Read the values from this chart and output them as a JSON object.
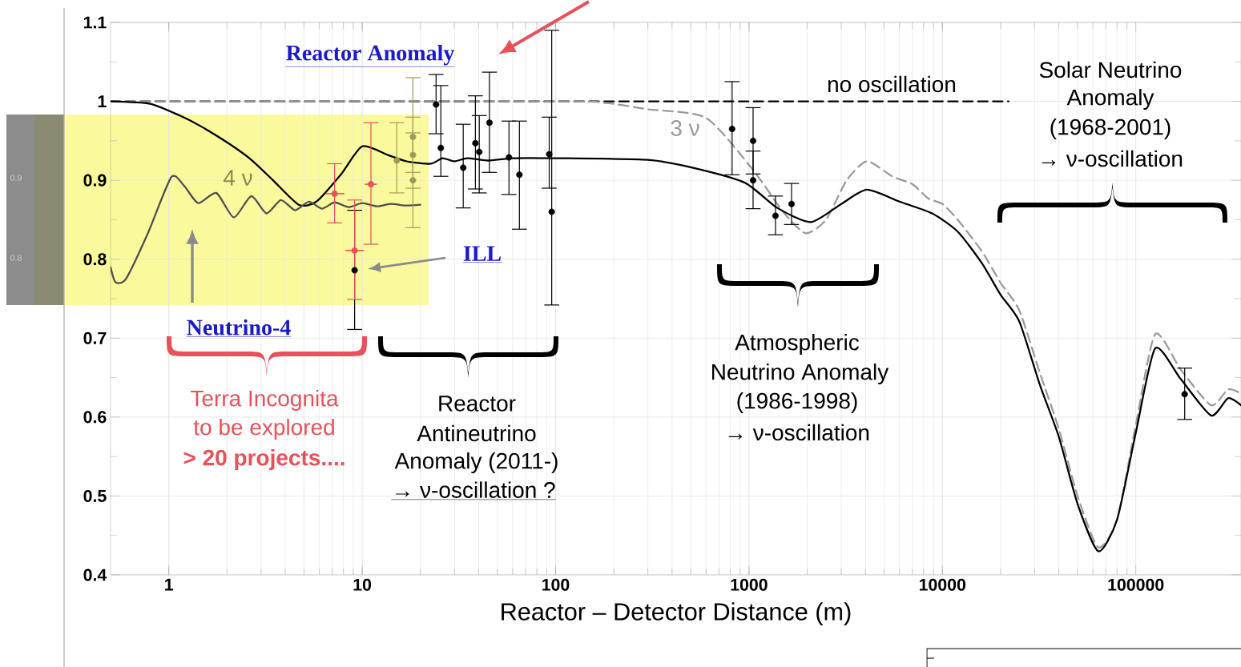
{
  "chart_data": {
    "type": "line",
    "xlabel": "Reactor – Detector Distance (m)",
    "log": "x",
    "grid": true,
    "xlim": [
      0.5,
      350000
    ],
    "ylim": [
      0.4,
      1.1
    ],
    "xticks": [
      1,
      10,
      100,
      1000,
      10000,
      100000
    ],
    "yticks": [
      0.4,
      0.5,
      0.6,
      0.7,
      0.8,
      0.9,
      1,
      1.1
    ],
    "series": [
      {
        "name": "no oscillation",
        "type": "line",
        "color": "#000000",
        "line_style": "dashed",
        "marker": "none",
        "x": [
          0.5,
          22000
        ],
        "values": [
          1,
          1
        ]
      },
      {
        "name": "3 ν",
        "type": "line",
        "color": "#9a9a9a",
        "line_style": "dashed",
        "marker": "none",
        "x": [
          0.5,
          100,
          182,
          300,
          600,
          1050,
          1500,
          1960,
          2500,
          3200,
          4070,
          5500,
          7000,
          8450,
          10000,
          12000,
          16000,
          20000,
          25000,
          32000,
          40000,
          50000,
          64000,
          80000,
          100000,
          126000,
          171000,
          245000,
          300000,
          350000
        ],
        "values": [
          1,
          1,
          0.998,
          0.99,
          0.979,
          0.913,
          0.86,
          0.833,
          0.85,
          0.9,
          0.924,
          0.905,
          0.895,
          0.877,
          0.87,
          0.85,
          0.81,
          0.77,
          0.735,
          0.655,
          0.585,
          0.5,
          0.435,
          0.47,
          0.59,
          0.705,
          0.66,
          0.615,
          0.635,
          0.63
        ]
      },
      {
        "name": "4 ν",
        "type": "line",
        "color": "#000000",
        "line_style": "solid",
        "marker": "none",
        "x": [
          0.5,
          0.8,
          1.14,
          1.5,
          2.09,
          2.7,
          3.46,
          4.7,
          5.8,
          7.8,
          10,
          13.6,
          17,
          22.7,
          26,
          30,
          35,
          45,
          60,
          100,
          300,
          510,
          950,
          1400,
          2090,
          3000,
          4070,
          6000,
          8850,
          12000,
          16000,
          20000,
          25000,
          32000,
          40000,
          50000,
          64000,
          80000,
          100000,
          126000,
          171000,
          245000,
          300000,
          350000
        ],
        "values": [
          1,
          0.997,
          0.982,
          0.967,
          0.945,
          0.925,
          0.9,
          0.869,
          0.873,
          0.908,
          0.943,
          0.932,
          0.924,
          0.921,
          0.928,
          0.924,
          0.928,
          0.925,
          0.928,
          0.928,
          0.926,
          0.916,
          0.897,
          0.865,
          0.847,
          0.87,
          0.888,
          0.873,
          0.858,
          0.835,
          0.795,
          0.755,
          0.721,
          0.64,
          0.575,
          0.49,
          0.43,
          0.47,
          0.58,
          0.687,
          0.648,
          0.602,
          0.624,
          0.615
        ]
      },
      {
        "type": "line",
        "color": "#4d4d4d",
        "line_style": "solid",
        "marker": "none",
        "x": [
          0.5,
          0.53,
          0.6,
          0.78,
          1.03,
          1.2,
          1.42,
          1.76,
          2.17,
          2.67,
          3.2,
          3.8,
          4.5,
          5.3,
          6.2,
          7.2,
          8.5,
          10,
          12,
          14,
          17,
          20
        ],
        "values": [
          0.79,
          0.771,
          0.775,
          0.833,
          0.904,
          0.893,
          0.871,
          0.884,
          0.853,
          0.88,
          0.858,
          0.875,
          0.862,
          0.873,
          0.864,
          0.872,
          0.866,
          0.871,
          0.867,
          0.87,
          0.868,
          0.869
        ]
      },
      {
        "type": "scatter",
        "color": "#9c9c5a",
        "marker": "circle",
        "x": [
          15.1,
          18.3,
          18.3,
          18.3
        ],
        "values": [
          0.925,
          0.955,
          0.932,
          0.9
        ],
        "errors": [
          [
            0.884,
            0.973
          ],
          [
            0.91,
            1.03
          ],
          [
            0.89,
            0.98
          ],
          [
            0.84,
            0.96
          ]
        ]
      },
      {
        "type": "scatter",
        "color": "#000000",
        "marker": "circle",
        "x": [
          9.14,
          24.1,
          25.5,
          33.3,
          38.5,
          40.3,
          45.5,
          57.4,
          65,
          92.7,
          95.5,
          818,
          1050,
          1050,
          1371,
          1660,
          179000
        ],
        "values": [
          0.786,
          0.996,
          0.941,
          0.916,
          0.947,
          0.936,
          0.973,
          0.929,
          0.907,
          0.933,
          0.86,
          0.965,
          0.95,
          0.9,
          0.855,
          0.87,
          0.629
        ],
        "errors": [
          [
            0.711,
            0.862
          ],
          [
            0.959,
            1.034
          ],
          [
            0.905,
            1.02
          ],
          [
            0.865,
            0.971
          ],
          [
            0.889,
            1.007
          ],
          [
            0.884,
            0.982
          ],
          [
            0.91,
            1.037
          ],
          [
            0.882,
            0.975
          ],
          [
            0.838,
            0.975
          ],
          [
            0.89,
            0.98
          ],
          [
            0.742,
            1.09
          ],
          [
            0.907,
            1.025
          ],
          [
            0.908,
            0.992
          ],
          [
            0.864,
            0.937
          ],
          [
            0.831,
            0.88
          ],
          [
            0.844,
            0.896
          ],
          [
            0.597,
            0.662
          ]
        ]
      },
      {
        "type": "scatter",
        "color": "#e8505a",
        "marker": "circle",
        "x": [
          7.2,
          11.1,
          9.14
        ],
        "values": [
          0.883,
          0.895,
          0.811
        ],
        "errors": [
          [
            0.846,
            0.921
          ],
          [
            0.819,
            0.973
          ],
          [
            0.749,
            0.875
          ]
        ],
        "xerrors": [
          [
            6.5,
            8.1
          ],
          [
            10.3,
            11.9
          ],
          [
            8.2,
            10.2
          ]
        ]
      }
    ],
    "annotations": [
      "Reactor  Anomaly",
      "ILL",
      "Neutrino-4",
      "Terra Incognita",
      "to be explored",
      "> 20 projects....",
      "Reactor",
      "Antineutrino",
      "Anomaly (2011-)",
      "→ ν-oscillation ?",
      "Atmospheric",
      "Neutrino Anomaly",
      "(1986-1998)",
      "→ ν-oscillation",
      "Solar Neutrino",
      "Anomaly",
      "(1968-2001)",
      "→ ν-oscillation",
      "0.9",
      "0.8"
    ]
  }
}
